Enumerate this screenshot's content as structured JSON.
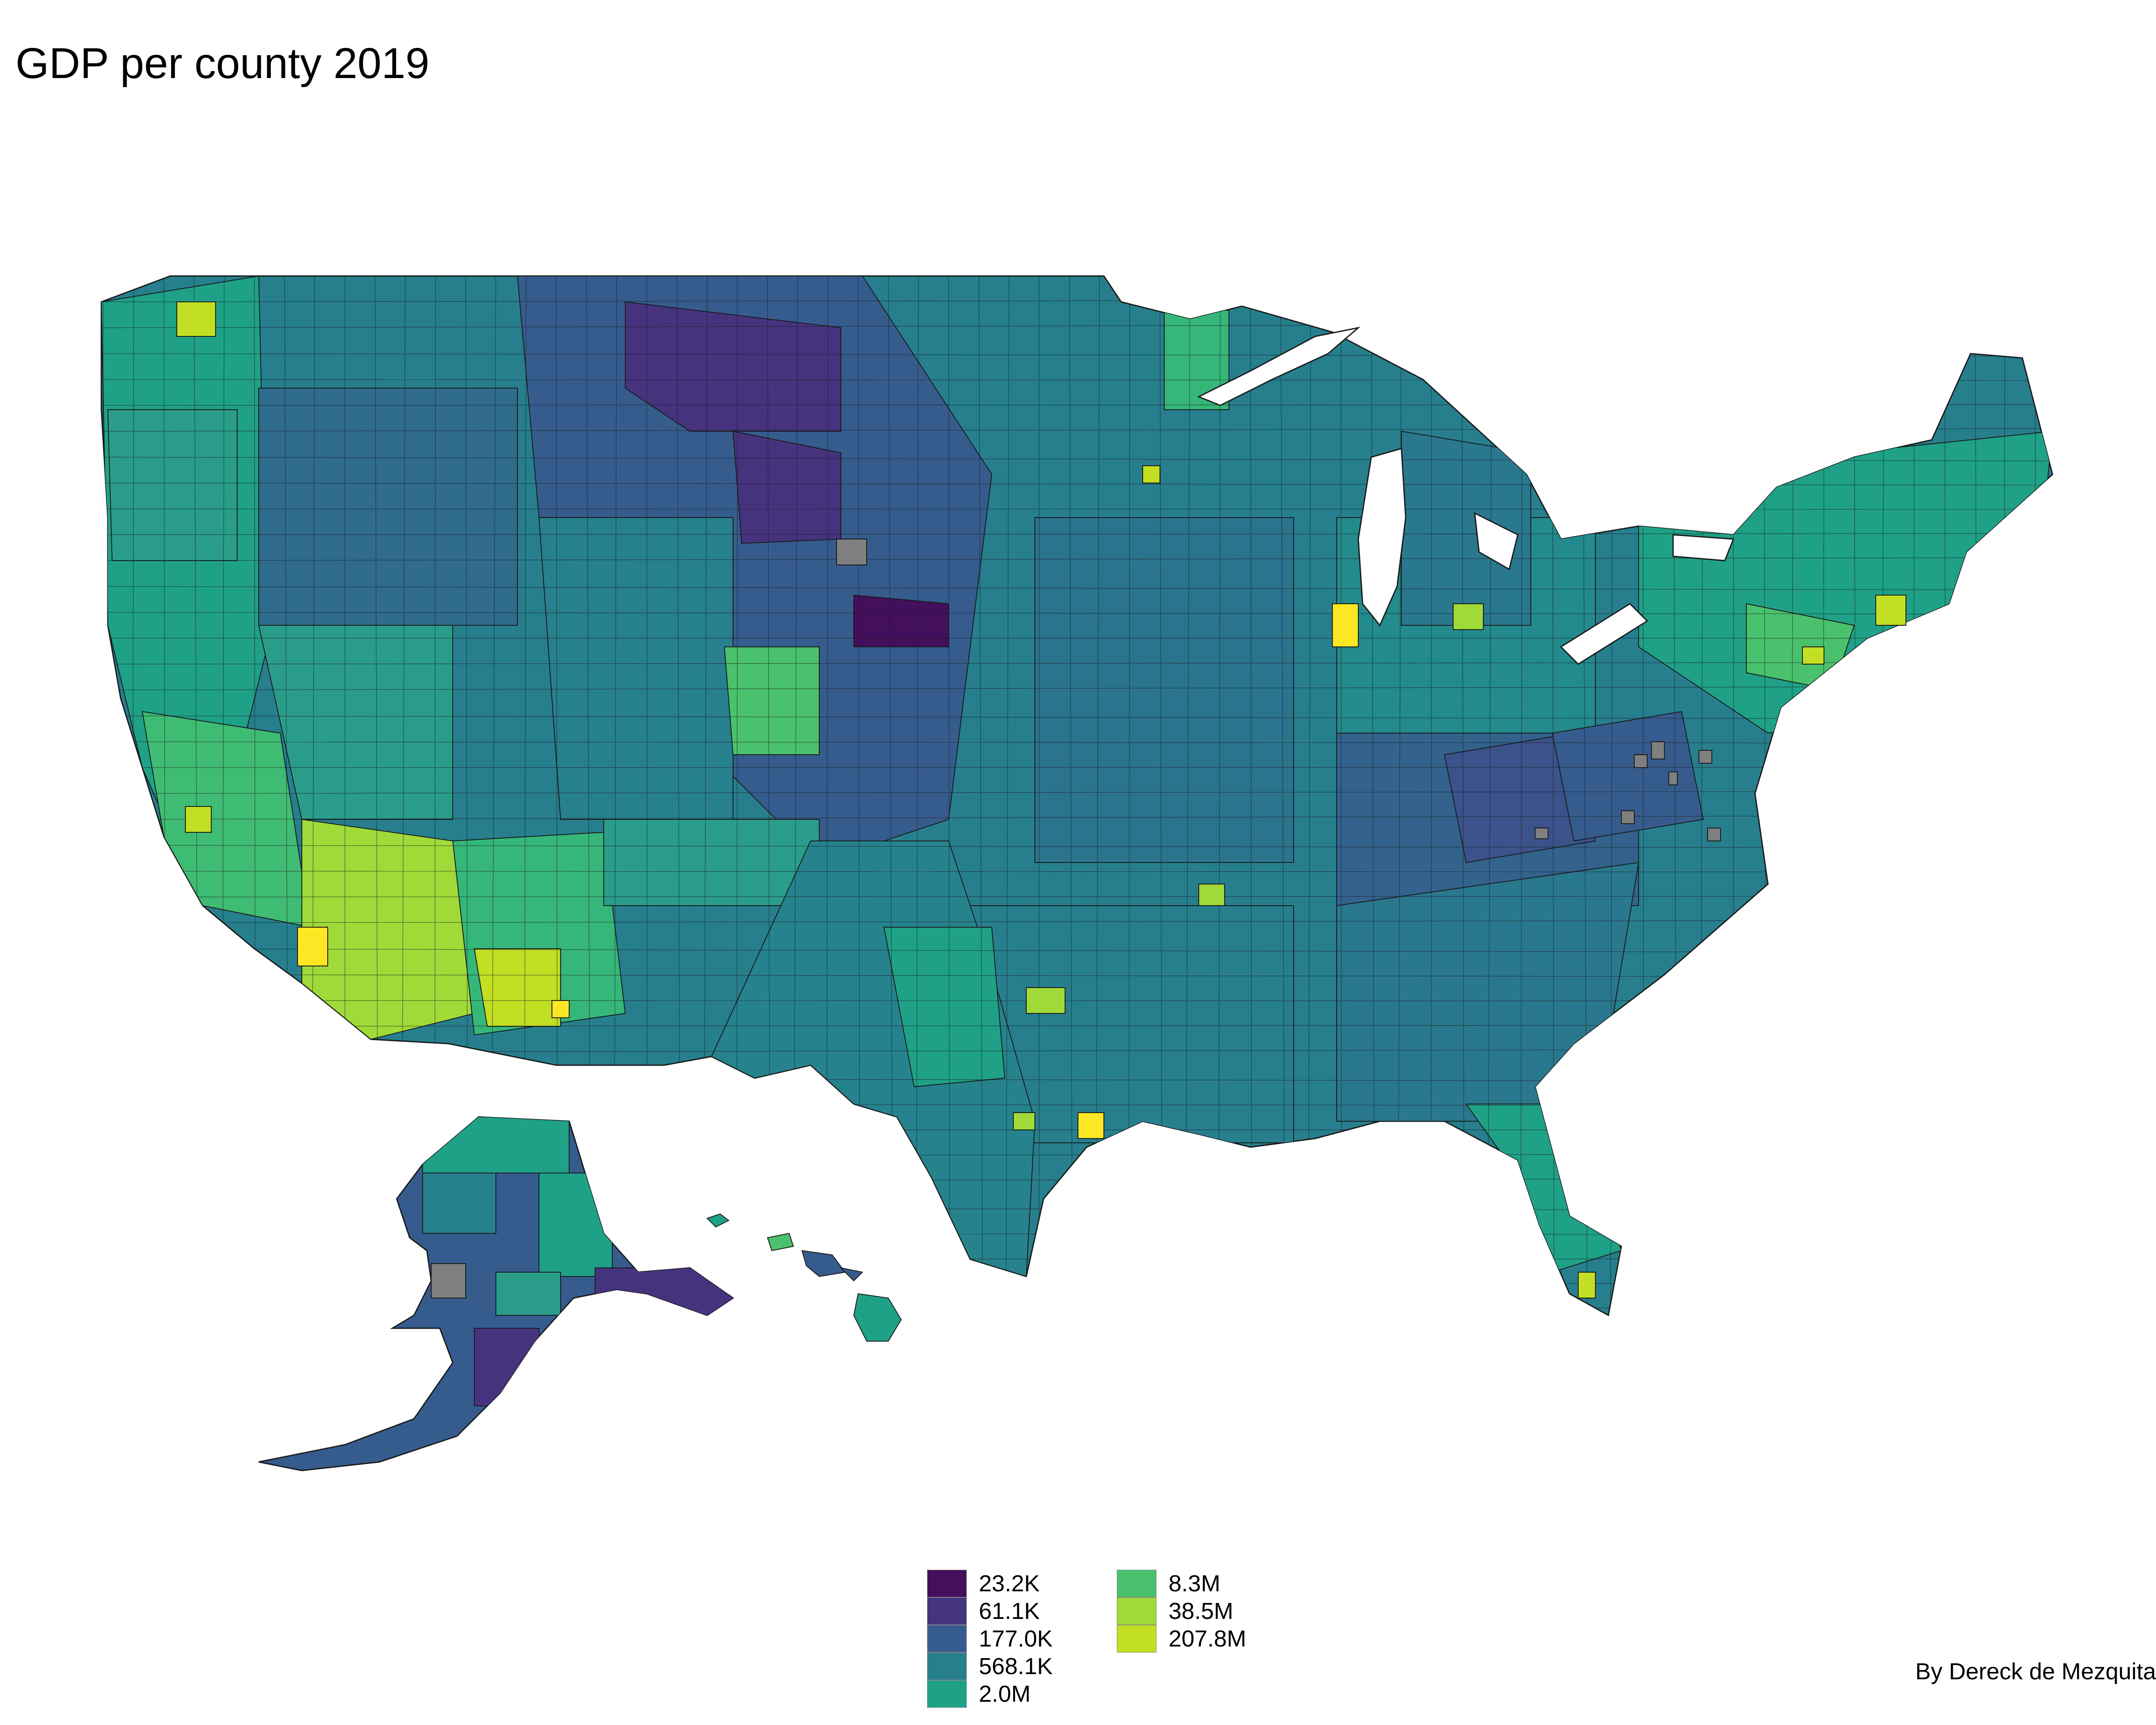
{
  "title": "GDP per county 2019",
  "caption": "By Dereck de Mezquita",
  "legend": {
    "items": [
      {
        "label": "23.2K",
        "color": "#440f5c"
      },
      {
        "label": "61.1K",
        "color": "#46337e"
      },
      {
        "label": "177.0K",
        "color": "#365c8d"
      },
      {
        "label": "568.1K",
        "color": "#277f8e"
      },
      {
        "label": "2.0M",
        "color": "#1fa187"
      },
      {
        "label": "8.3M",
        "color": "#4ac16d"
      },
      {
        "label": "38.5M",
        "color": "#a0da39"
      },
      {
        "label": "207.8M",
        "color": "#c2df23"
      }
    ]
  },
  "map": {
    "description_colors": {
      "missing": "#7f7f7f",
      "highest": "#fde725",
      "border": "#1a1a1a"
    }
  }
}
